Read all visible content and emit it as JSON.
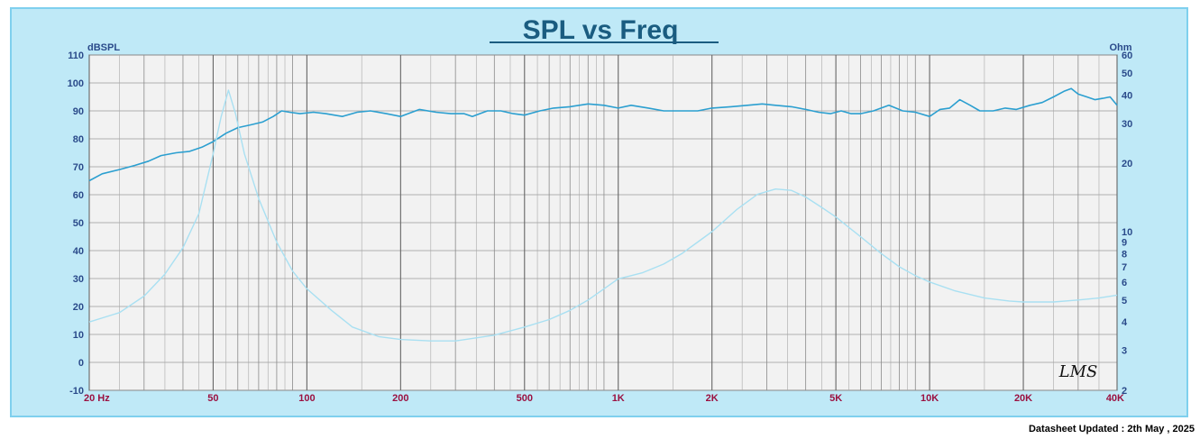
{
  "chart_data": {
    "type": "line",
    "title": "SPL vs Freq",
    "ylabel_left": "dBSPL",
    "ylabel_right": "Ohm",
    "x_scale": "log",
    "xlim": [
      20,
      40000
    ],
    "ylim_left": [
      -10,
      110
    ],
    "ylim_right": [
      2,
      60
    ],
    "y_right_scale": "log",
    "grid": true,
    "x_ticks": [
      {
        "value": 20,
        "label": "20  Hz"
      },
      {
        "value": 50,
        "label": "50"
      },
      {
        "value": 100,
        "label": "100"
      },
      {
        "value": 200,
        "label": "200"
      },
      {
        "value": 500,
        "label": "500"
      },
      {
        "value": 1000,
        "label": "1K"
      },
      {
        "value": 2000,
        "label": "2K"
      },
      {
        "value": 5000,
        "label": "5K"
      },
      {
        "value": 10000,
        "label": "10K"
      },
      {
        "value": 20000,
        "label": "20K"
      },
      {
        "value": 40000,
        "label": "40K"
      }
    ],
    "y_left_ticks": [
      -10,
      0,
      10,
      20,
      30,
      40,
      50,
      60,
      70,
      80,
      90,
      100,
      110
    ],
    "y_right_ticks": [
      2,
      3,
      4,
      5,
      6,
      7,
      8,
      9,
      10,
      20,
      30,
      40,
      50,
      60
    ],
    "series": [
      {
        "axis": "left",
        "color": "#2b9fd0",
        "points": [
          [
            20,
            65
          ],
          [
            22,
            67.5
          ],
          [
            25,
            69
          ],
          [
            28,
            70.5
          ],
          [
            31,
            72
          ],
          [
            34,
            74
          ],
          [
            38,
            75
          ],
          [
            42,
            75.5
          ],
          [
            46,
            77
          ],
          [
            50,
            79
          ],
          [
            55,
            82
          ],
          [
            60,
            84
          ],
          [
            66,
            85
          ],
          [
            72,
            86
          ],
          [
            78,
            88
          ],
          [
            83,
            90
          ],
          [
            88,
            89.5
          ],
          [
            95,
            89
          ],
          [
            105,
            89.5
          ],
          [
            115,
            89
          ],
          [
            130,
            88
          ],
          [
            145,
            89.5
          ],
          [
            160,
            90
          ],
          [
            180,
            89
          ],
          [
            200,
            88
          ],
          [
            230,
            90.5
          ],
          [
            260,
            89.5
          ],
          [
            290,
            89
          ],
          [
            320,
            89
          ],
          [
            340,
            88
          ],
          [
            380,
            90
          ],
          [
            420,
            90
          ],
          [
            460,
            89
          ],
          [
            500,
            88.5
          ],
          [
            560,
            90
          ],
          [
            620,
            91
          ],
          [
            700,
            91.5
          ],
          [
            800,
            92.5
          ],
          [
            900,
            92
          ],
          [
            1000,
            91
          ],
          [
            1100,
            92
          ],
          [
            1250,
            91
          ],
          [
            1400,
            90
          ],
          [
            1600,
            90
          ],
          [
            1800,
            90
          ],
          [
            2000,
            91
          ],
          [
            2300,
            91.5
          ],
          [
            2600,
            92
          ],
          [
            2900,
            92.5
          ],
          [
            3200,
            92
          ],
          [
            3600,
            91.5
          ],
          [
            4000,
            90.5
          ],
          [
            4400,
            89.5
          ],
          [
            4800,
            89
          ],
          [
            5200,
            90
          ],
          [
            5600,
            89
          ],
          [
            6000,
            89
          ],
          [
            6600,
            90
          ],
          [
            7400,
            92
          ],
          [
            8200,
            90
          ],
          [
            9000,
            89.5
          ],
          [
            10000,
            88
          ],
          [
            10800,
            90.5
          ],
          [
            11600,
            91
          ],
          [
            12500,
            94
          ],
          [
            13500,
            92
          ],
          [
            14500,
            90
          ],
          [
            16000,
            90
          ],
          [
            17500,
            91
          ],
          [
            19000,
            90.5
          ],
          [
            21000,
            92
          ],
          [
            23000,
            93
          ],
          [
            25000,
            95
          ],
          [
            27000,
            97
          ],
          [
            28500,
            98
          ],
          [
            30000,
            96
          ],
          [
            32000,
            95
          ],
          [
            34000,
            94
          ],
          [
            36000,
            94.5
          ],
          [
            38000,
            95
          ],
          [
            40000,
            92
          ]
        ]
      },
      {
        "axis": "right",
        "color": "#a9e0f2",
        "points": [
          [
            20,
            4
          ],
          [
            25,
            4.4
          ],
          [
            30,
            5.2
          ],
          [
            35,
            6.5
          ],
          [
            40,
            8.5
          ],
          [
            45,
            12
          ],
          [
            50,
            22
          ],
          [
            53,
            32
          ],
          [
            56,
            42
          ],
          [
            59,
            33
          ],
          [
            63,
            22
          ],
          [
            70,
            14
          ],
          [
            80,
            9
          ],
          [
            90,
            6.7
          ],
          [
            100,
            5.6
          ],
          [
            120,
            4.5
          ],
          [
            140,
            3.8
          ],
          [
            170,
            3.45
          ],
          [
            200,
            3.35
          ],
          [
            250,
            3.3
          ],
          [
            300,
            3.3
          ],
          [
            400,
            3.5
          ],
          [
            500,
            3.8
          ],
          [
            600,
            4.1
          ],
          [
            700,
            4.5
          ],
          [
            800,
            5.0
          ],
          [
            900,
            5.6
          ],
          [
            1000,
            6.2
          ],
          [
            1100,
            6.4
          ],
          [
            1200,
            6.6
          ],
          [
            1400,
            7.2
          ],
          [
            1600,
            8.0
          ],
          [
            1800,
            9.0
          ],
          [
            2000,
            10.0
          ],
          [
            2400,
            12.5
          ],
          [
            2800,
            14.6
          ],
          [
            3200,
            15.4
          ],
          [
            3600,
            15.2
          ],
          [
            4000,
            14.2
          ],
          [
            4500,
            12.8
          ],
          [
            5000,
            11.6
          ],
          [
            6000,
            9.5
          ],
          [
            7000,
            8.0
          ],
          [
            8000,
            7.0
          ],
          [
            9000,
            6.4
          ],
          [
            10000,
            6.0
          ],
          [
            12000,
            5.5
          ],
          [
            15000,
            5.1
          ],
          [
            18000,
            4.95
          ],
          [
            20000,
            4.9
          ],
          [
            25000,
            4.9
          ],
          [
            30000,
            5.0
          ],
          [
            35000,
            5.1
          ],
          [
            40000,
            5.25
          ]
        ]
      }
    ]
  },
  "logo_text": "LMS",
  "footer_text": "Datasheet Updated : 2th May , 2025"
}
